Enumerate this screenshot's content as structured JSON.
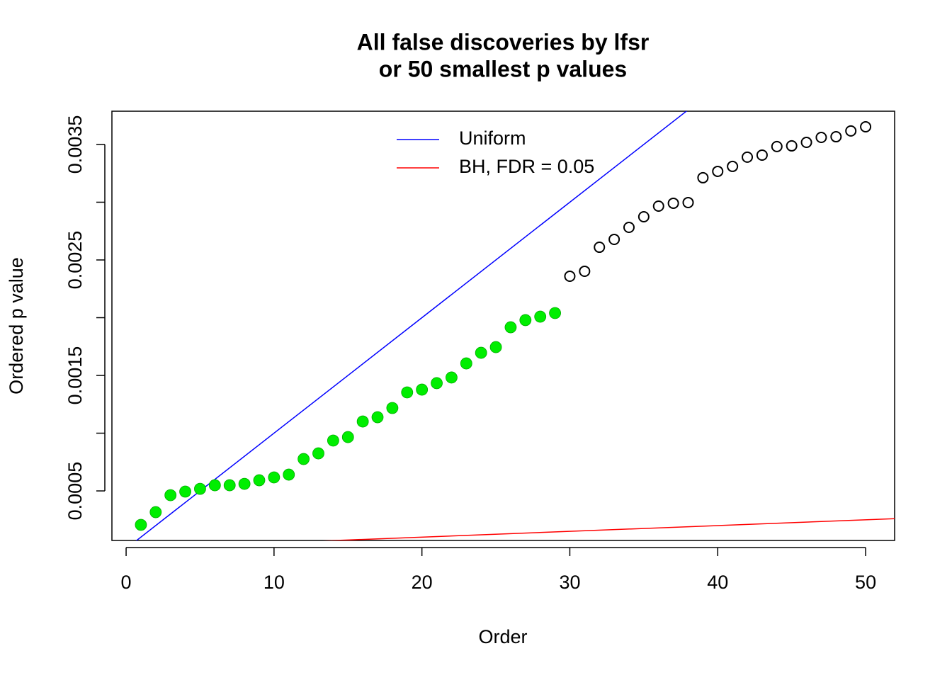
{
  "chart_data": {
    "type": "scatter",
    "title": [
      "All false discoveries by lfsr",
      "or 50 smallest p values"
    ],
    "x_label": "Order",
    "y_label": "Ordered p value",
    "xlim": [
      -0.96,
      51.96
    ],
    "xticks": [
      0,
      10,
      20,
      30,
      40,
      50
    ],
    "ylim": [
      7.1e-05,
      0.003788
    ],
    "yticks": [
      0.0005,
      {
        "value": 0.001,
        "label": null
      },
      0.0015,
      {
        "value": 0.002,
        "label": null
      },
      0.0025,
      {
        "value": 0.003,
        "label": null
      },
      0.0035
    ],
    "legend": "top",
    "series": [
      {
        "color": "#00ee00",
        "filled": true,
        "x": [
          1,
          2,
          3,
          4,
          5,
          6,
          7,
          8,
          9,
          10,
          11,
          12,
          13,
          14,
          15,
          16,
          17,
          18,
          19,
          20,
          21,
          22,
          23,
          24,
          25,
          26,
          27,
          28,
          29
        ],
        "values": [
          0.000206,
          0.000316,
          0.000463,
          0.000494,
          0.000518,
          0.000549,
          0.000549,
          0.000561,
          0.000592,
          0.000617,
          0.000641,
          0.000776,
          0.000825,
          0.000936,
          0.000966,
          0.001101,
          0.001138,
          0.001218,
          0.001353,
          0.001377,
          0.001433,
          0.001482,
          0.001604,
          0.001696,
          0.001745,
          0.001917,
          0.001979,
          0.002009,
          0.00204
        ]
      },
      {
        "color": "#000000",
        "filled": false,
        "x": [
          30,
          31,
          32,
          33,
          34,
          35,
          36,
          37,
          38,
          39,
          40,
          41,
          42,
          43,
          44,
          45,
          46,
          47,
          48,
          49,
          50
        ],
        "values": [
          0.002359,
          0.002402,
          0.00261,
          0.002678,
          0.002782,
          0.002874,
          0.002966,
          0.002991,
          0.002997,
          0.003212,
          0.003267,
          0.00331,
          0.00339,
          0.003408,
          0.003482,
          0.003488,
          0.003518,
          0.003561,
          0.003567,
          0.003617,
          0.003653
        ]
      }
    ],
    "lines": [
      {
        "name": "Uniform",
        "color": "#0000ff",
        "intercept": 0,
        "slope": 0.0001
      },
      {
        "name": "BH, FDR = 0.05",
        "color": "#ff0000",
        "intercept": 0,
        "slope": 5e-06
      }
    ]
  }
}
